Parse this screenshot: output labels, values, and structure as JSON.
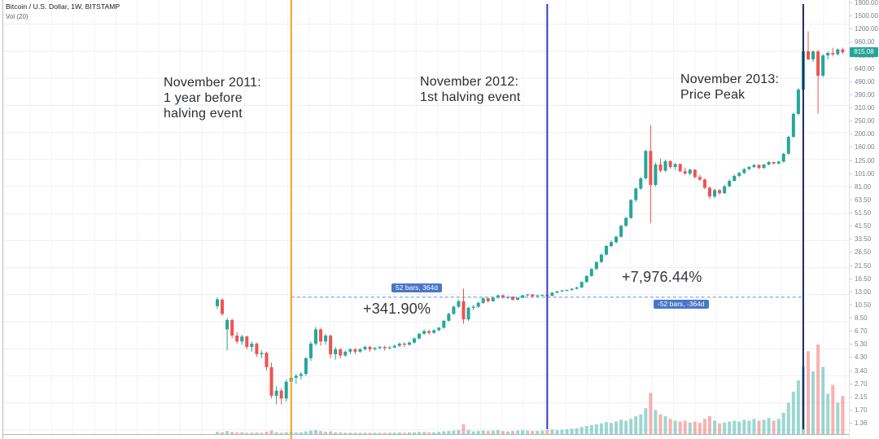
{
  "header": {
    "symbol_title": "Bitcoin / U.S. Dollar, 1W, BITSTAMP",
    "indicator_label": "Vol (20)"
  },
  "annotations": [
    {
      "id": "nov-2011",
      "lines": [
        "November 2011:",
        "1 year before",
        "halving event"
      ]
    },
    {
      "id": "nov-2012",
      "lines": [
        "November 2012:",
        "1st halving event"
      ]
    },
    {
      "id": "nov-2013",
      "lines": [
        "November 2013:",
        "Price Peak"
      ]
    }
  ],
  "measurements": [
    {
      "bars_label": "52 bars, 364d",
      "percent": "+341.90%"
    },
    {
      "bars_label": "-52 bars, -364d",
      "percent": "+7,976.44%"
    }
  ],
  "price_axis": {
    "ticks": [
      "1900.00",
      "1500.00",
      "1200.00",
      "960.00",
      "765.00",
      "640.00",
      "490.00",
      "390.00",
      "310.00",
      "250.00",
      "200.00",
      "160.00",
      "125.00",
      "101.00",
      "81.00",
      "63.50",
      "51.50",
      "41.50",
      "33.50",
      "26.50",
      "21.50",
      "16.50",
      "13.00",
      "10.50",
      "8.50",
      "6.70",
      "5.30",
      "4.30",
      "3.40",
      "2.70",
      "2.15",
      "1.70",
      "1.36"
    ],
    "last_price_label": "815.08"
  },
  "colors": {
    "up": "#26a69a",
    "down": "#ef5350",
    "volume_up": "rgba(38,166,154,0.45)",
    "volume_down": "rgba(239,83,80,0.45)",
    "orange_line": "#f5a01e",
    "blue_line": "#2f3bc5",
    "navy_line": "#1f2a63",
    "measure_line": "#5b8dd9",
    "last_price_bg": "#26a69a"
  },
  "chart_data": {
    "type": "candlestick+volume",
    "title": "Bitcoin / U.S. Dollar, 1W, BITSTAMP",
    "scale": "logarithmic",
    "price_range_visible": [
      1.36,
      1900
    ],
    "grid": true,
    "legend_position": "top-left",
    "measure_level": 12.02,
    "events": [
      {
        "bar": 15,
        "label": "November 2011: 1 year before halving event",
        "color": "#f5a01e"
      },
      {
        "bar": 67,
        "label": "November 2012: 1st halving event",
        "color": "#2f3bc5"
      },
      {
        "bar": 119,
        "label": "November 2013: Price Peak",
        "color": "#1f2a63"
      }
    ],
    "candles": [
      [
        10.3,
        12,
        9.8,
        11.6
      ],
      [
        11.5,
        11.8,
        8.7,
        9
      ],
      [
        6.9,
        8.4,
        4.8,
        8.1
      ],
      [
        8.1,
        8.3,
        5.9,
        6.2
      ],
      [
        6.2,
        6.6,
        5.4,
        5.6
      ],
      [
        5.6,
        6.3,
        5.3,
        6.1
      ],
      [
        6.1,
        6.2,
        4.9,
        5.1
      ],
      [
        5.1,
        5.6,
        4.7,
        5.4
      ],
      [
        5.4,
        5.5,
        4.3,
        4.5
      ],
      [
        4.5,
        4.8,
        4.2,
        4.6
      ],
      [
        4.6,
        4.7,
        3.4,
        3.6
      ],
      [
        3.6,
        3.9,
        2.1,
        2.2
      ],
      [
        2.2,
        2.6,
        1.9,
        2.4
      ],
      [
        2.4,
        2.5,
        1.9,
        2.1
      ],
      [
        2.1,
        2.9,
        2,
        2.8
      ],
      [
        2.8,
        3.1,
        2.4,
        3
      ],
      [
        3,
        3.2,
        2.7,
        3.1
      ],
      [
        3.1,
        3.3,
        2.9,
        3.2
      ],
      [
        3.2,
        4.3,
        3.1,
        4.2
      ],
      [
        4.2,
        5.6,
        4,
        5.4
      ],
      [
        5.4,
        7.2,
        5.2,
        6.9
      ],
      [
        6.9,
        7.1,
        5.2,
        5.6
      ],
      [
        5.6,
        6.4,
        5.3,
        6.2
      ],
      [
        6.2,
        6.3,
        4.2,
        4.5
      ],
      [
        4.5,
        5.1,
        4.1,
        4.9
      ],
      [
        4.9,
        5,
        4.2,
        4.4
      ],
      [
        4.4,
        4.8,
        4.3,
        4.7
      ],
      [
        4.7,
        5,
        4.5,
        4.9
      ],
      [
        4.9,
        5,
        4.5,
        4.7
      ],
      [
        4.7,
        5,
        4.6,
        4.9
      ],
      [
        4.9,
        5.2,
        4.8,
        5.1
      ],
      [
        5.1,
        5.2,
        4.7,
        4.9
      ],
      [
        4.9,
        5.1,
        4.8,
        5
      ],
      [
        5,
        5.2,
        4.9,
        5.1
      ],
      [
        5.1,
        5.2,
        4.8,
        5
      ],
      [
        5,
        5.2,
        4.9,
        5.05
      ],
      [
        5.05,
        5.3,
        5,
        5.2
      ],
      [
        5.2,
        5.5,
        5.1,
        5.4
      ],
      [
        5.4,
        5.5,
        5.1,
        5.3
      ],
      [
        5.3,
        5.6,
        5.2,
        5.5
      ],
      [
        5.5,
        6,
        5.4,
        5.9
      ],
      [
        5.9,
        6.5,
        5.8,
        6.4
      ],
      [
        6.4,
        6.9,
        6.3,
        6.7
      ],
      [
        6.7,
        6.8,
        6.3,
        6.5
      ],
      [
        6.5,
        6.9,
        6.4,
        6.8
      ],
      [
        6.8,
        7.2,
        6.7,
        7.1
      ],
      [
        7.1,
        8.1,
        7,
        8
      ],
      [
        8,
        9.2,
        7.9,
        9
      ],
      [
        9,
        10.4,
        8.9,
        10.2
      ],
      [
        10.2,
        11.5,
        10,
        11.2
      ],
      [
        11.2,
        13.9,
        7.6,
        8.2
      ],
      [
        8.2,
        10.2,
        8,
        10
      ],
      [
        10,
        10.5,
        9.6,
        10.2
      ],
      [
        10.2,
        11.1,
        10,
        10.9
      ],
      [
        10.9,
        12,
        10.7,
        11.8
      ],
      [
        11.8,
        11.9,
        11,
        11.2
      ],
      [
        11.2,
        12,
        11.1,
        11.9
      ],
      [
        11.9,
        12.5,
        11.7,
        12.4
      ],
      [
        12.4,
        12.6,
        11.7,
        11.9
      ],
      [
        11.9,
        12.2,
        11.6,
        12.1
      ],
      [
        12.1,
        12.2,
        11.3,
        11.5
      ],
      [
        11.5,
        12,
        11.3,
        11.9
      ],
      [
        11.9,
        12.5,
        11.8,
        12.4
      ],
      [
        12.4,
        12.7,
        12.2,
        12.6
      ],
      [
        12.6,
        12.7,
        12,
        12.2
      ],
      [
        12.2,
        12.5,
        12,
        12.4
      ],
      [
        12.4,
        12.6,
        12.2,
        12.5
      ],
      [
        12.5,
        12.7,
        12.1,
        12.3
      ],
      [
        12.3,
        13.1,
        12.2,
        13
      ],
      [
        13,
        13.4,
        12.8,
        13.3
      ],
      [
        13.3,
        13.6,
        13.1,
        13.5
      ],
      [
        13.5,
        13.7,
        13.3,
        13.6
      ],
      [
        13.6,
        14,
        13.4,
        13.9
      ],
      [
        13.9,
        14.4,
        13.7,
        14.2
      ],
      [
        14.2,
        15.8,
        14.1,
        15.6
      ],
      [
        15.6,
        17.5,
        15.4,
        17.3
      ],
      [
        17.3,
        19.8,
        17.1,
        19.5
      ],
      [
        19.5,
        22.3,
        19.2,
        22
      ],
      [
        22,
        25.4,
        21.7,
        25
      ],
      [
        25,
        29.5,
        24.6,
        29
      ],
      [
        29,
        31.9,
        28.4,
        31
      ],
      [
        31,
        34.8,
        30.2,
        34
      ],
      [
        34,
        41.8,
        33.5,
        41
      ],
      [
        41,
        48,
        40.2,
        47
      ],
      [
        47,
        65,
        46.3,
        64
      ],
      [
        64,
        79.5,
        62,
        78
      ],
      [
        78,
        95,
        76,
        93
      ],
      [
        93,
        152,
        91,
        149
      ],
      [
        149,
        233,
        43,
        83
      ],
      [
        83,
        122,
        81,
        118
      ],
      [
        118,
        131,
        103,
        106
      ],
      [
        106,
        128,
        104,
        125
      ],
      [
        125,
        127,
        110,
        113
      ],
      [
        113,
        121,
        108,
        119
      ],
      [
        119,
        120,
        103,
        105
      ],
      [
        105,
        112,
        99,
        101
      ],
      [
        101,
        110,
        98,
        108
      ],
      [
        108,
        109,
        93,
        95
      ],
      [
        95,
        99,
        89,
        91
      ],
      [
        91,
        93,
        77,
        79
      ],
      [
        79,
        81,
        65,
        68
      ],
      [
        68,
        78,
        66,
        76
      ],
      [
        76,
        77,
        70,
        72
      ],
      [
        72,
        83,
        71,
        81
      ],
      [
        81,
        91,
        80,
        89
      ],
      [
        89,
        99,
        88,
        97
      ],
      [
        97,
        104,
        95,
        102
      ],
      [
        102,
        111,
        100,
        109
      ],
      [
        109,
        115,
        107,
        113
      ],
      [
        113,
        119,
        111,
        117
      ],
      [
        117,
        118,
        109,
        111
      ],
      [
        111,
        119,
        110,
        118
      ],
      [
        118,
        125,
        116,
        123
      ],
      [
        123,
        124,
        118,
        120
      ],
      [
        120,
        126,
        118,
        124
      ],
      [
        124,
        144,
        122,
        142
      ],
      [
        142,
        194,
        140,
        190
      ],
      [
        190,
        288,
        186,
        282
      ],
      [
        282,
        440,
        276,
        428
      ],
      [
        428,
        850,
        420,
        830
      ],
      [
        830,
        1170,
        710,
        722
      ],
      [
        722,
        845,
        690,
        826
      ],
      [
        826,
        852,
        283,
        545
      ],
      [
        545,
        790,
        530,
        772
      ],
      [
        772,
        822,
        718,
        806
      ],
      [
        806,
        880,
        758,
        788
      ],
      [
        788,
        872,
        768,
        856
      ],
      [
        856,
        882,
        788,
        815.08
      ]
    ],
    "volumes": [
      5,
      4,
      7,
      5,
      4,
      4,
      3,
      3,
      4,
      3,
      5,
      8,
      4,
      3,
      4,
      5,
      4,
      4,
      6,
      8,
      9,
      7,
      5,
      6,
      4,
      4,
      3,
      3,
      3,
      3,
      3,
      3,
      3,
      3,
      3,
      3,
      3,
      4,
      3,
      4,
      4,
      5,
      5,
      4,
      4,
      5,
      6,
      7,
      8,
      9,
      22,
      9,
      6,
      7,
      8,
      7,
      8,
      9,
      7,
      6,
      7,
      8,
      9,
      8,
      7,
      7,
      8,
      9,
      10,
      9,
      10,
      11,
      12,
      13,
      16,
      18,
      20,
      22,
      24,
      27,
      25,
      28,
      32,
      30,
      34,
      40,
      44,
      58,
      92,
      54,
      44,
      40,
      34,
      30,
      28,
      30,
      26,
      28,
      25,
      34,
      40,
      30,
      24,
      26,
      28,
      30,
      28,
      32,
      30,
      34,
      30,
      32,
      36,
      30,
      34,
      48,
      70,
      95,
      120,
      150,
      185,
      140,
      200,
      150,
      90,
      110,
      70,
      85
    ]
  }
}
